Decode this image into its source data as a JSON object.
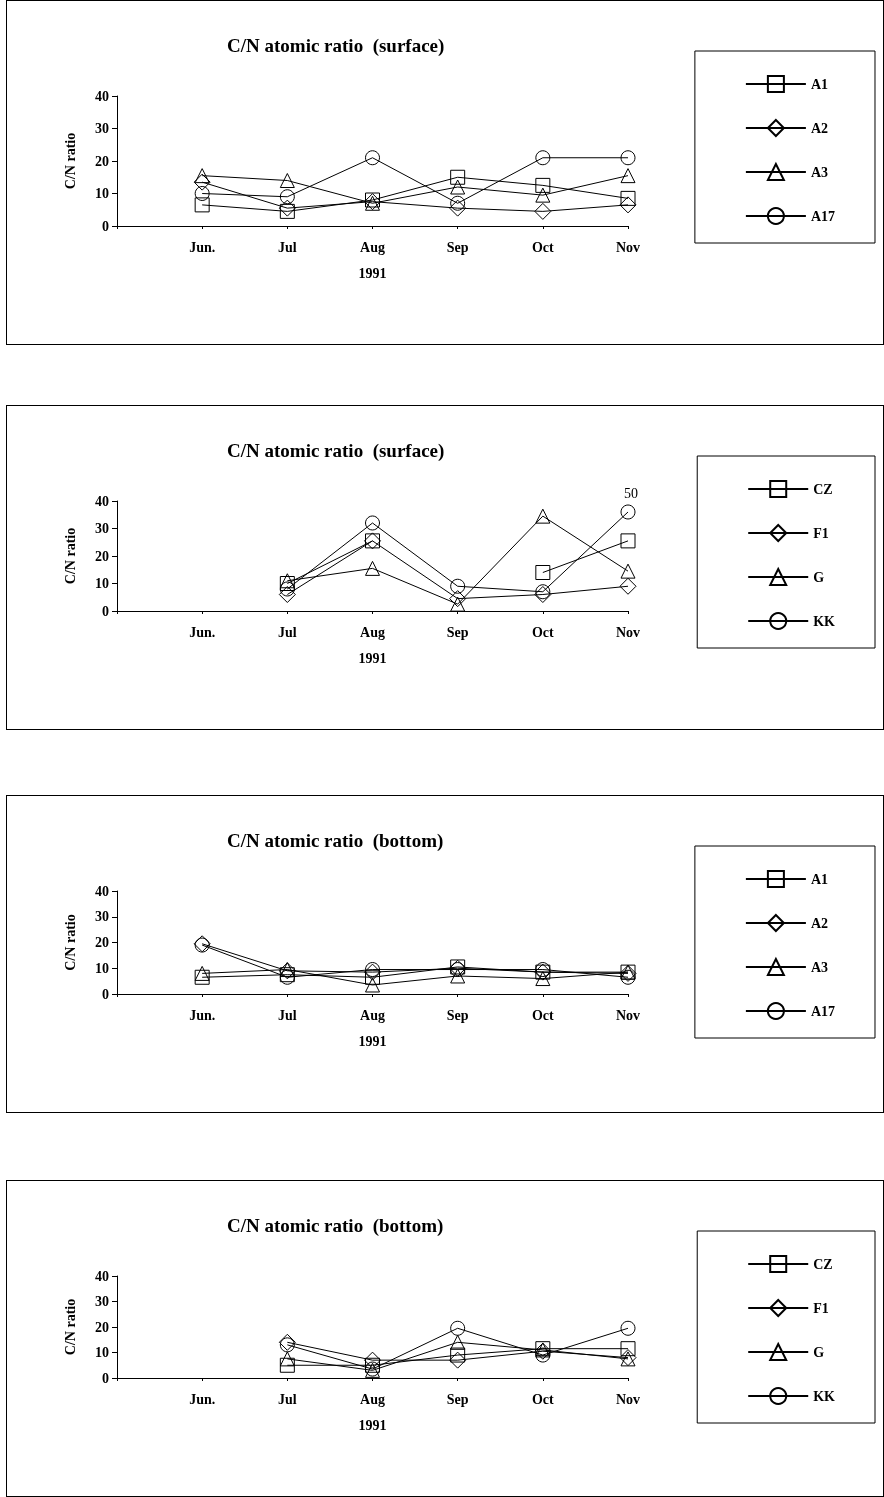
{
  "chart_data": [
    {
      "type": "line",
      "title": "C/N atomic ratio  (surface)",
      "xlabel": "1991",
      "ylabel": "C/N ratio",
      "categories": [
        null,
        "Jun.",
        "Jul",
        "Aug",
        "Sep",
        "Oct",
        "Nov"
      ],
      "ylim": [
        0,
        40
      ],
      "yticks": [
        0,
        10,
        20,
        30,
        40
      ],
      "grid": false,
      "legend": "right",
      "series": [
        {
          "name": "A1",
          "color": "#000000",
          "marker": "square",
          "values": [
            null,
            6.5,
            4.5,
            8,
            15,
            12.5,
            8.5
          ]
        },
        {
          "name": "A2",
          "color": "#000000",
          "marker": "diamond",
          "values": [
            null,
            13.5,
            5.5,
            7.5,
            5.5,
            4.5,
            6.5
          ]
        },
        {
          "name": "A3",
          "color": "#000000",
          "marker": "triangle",
          "values": [
            null,
            15.5,
            14,
            7,
            12,
            9.5,
            15.5
          ]
        },
        {
          "name": "A17",
          "color": "#000000",
          "marker": "circle",
          "values": [
            null,
            10,
            9,
            21,
            7,
            21,
            21
          ]
        }
      ]
    },
    {
      "type": "line",
      "title": "C/N atomic ratio  (surface)",
      "xlabel": "1991",
      "ylabel": "C/N ratio",
      "categories": [
        null,
        "Jun.",
        "Jul",
        "Aug",
        "Sep",
        "Oct",
        "Nov"
      ],
      "ylim": [
        0,
        40
      ],
      "yticks": [
        0,
        10,
        20,
        30,
        40
      ],
      "grid": false,
      "legend": "right",
      "annotations": [
        "50"
      ],
      "series": [
        {
          "name": "CZ",
          "color": "#000000",
          "marker": "square",
          "values": [
            null,
            null,
            10,
            25.5,
            null,
            14,
            25.5
          ]
        },
        {
          "name": "F1",
          "color": "#000000",
          "marker": "diamond",
          "values": [
            null,
            null,
            6,
            25.5,
            4.5,
            6,
            9
          ]
        },
        {
          "name": "G",
          "color": "#000000",
          "marker": "triangle",
          "values": [
            null,
            null,
            11,
            15.5,
            2.5,
            34.5,
            14.5
          ]
        },
        {
          "name": "KK",
          "color": "#000000",
          "marker": "circle",
          "values": [
            null,
            null,
            8,
            32,
            9,
            7,
            36
          ]
        }
      ]
    },
    {
      "type": "line",
      "title": "C/N atomic ratio  (bottom)",
      "xlabel": "1991",
      "ylabel": "C/N ratio",
      "categories": [
        null,
        "Jun.",
        "Jul",
        "Aug",
        "Sep",
        "Oct",
        "Nov"
      ],
      "ylim": [
        0,
        40
      ],
      "yticks": [
        0,
        10,
        20,
        30,
        40
      ],
      "grid": false,
      "legend": "right",
      "series": [
        {
          "name": "A1",
          "color": "#000000",
          "marker": "square",
          "values": [
            null,
            6.5,
            7.5,
            6.5,
            10.5,
            8.5,
            8.5
          ]
        },
        {
          "name": "A2",
          "color": "#000000",
          "marker": "diamond",
          "values": [
            null,
            19.5,
            9,
            8.5,
            10,
            8.5,
            8
          ]
        },
        {
          "name": "A3",
          "color": "#000000",
          "marker": "triangle",
          "values": [
            null,
            8,
            9.5,
            3.5,
            7,
            6,
            8.5
          ]
        },
        {
          "name": "A17",
          "color": "#000000",
          "marker": "circle",
          "values": [
            null,
            19,
            6.5,
            9.5,
            9.5,
            9.5,
            6.5
          ]
        }
      ]
    },
    {
      "type": "line",
      "title": "C/N atomic ratio  (bottom)",
      "xlabel": "1991",
      "ylabel": "C/N ratio",
      "categories": [
        null,
        "Jun.",
        "Jul",
        "Aug",
        "Sep",
        "Oct",
        "Nov"
      ],
      "ylim": [
        0,
        40
      ],
      "yticks": [
        0,
        10,
        20,
        30,
        40
      ],
      "grid": false,
      "legend": "right",
      "series": [
        {
          "name": "CZ",
          "color": "#000000",
          "marker": "square",
          "values": [
            null,
            null,
            5,
            5,
            9,
            11.5,
            11.5
          ]
        },
        {
          "name": "F1",
          "color": "#000000",
          "marker": "diamond",
          "values": [
            null,
            null,
            14,
            7,
            7,
            10.5,
            8
          ]
        },
        {
          "name": "G",
          "color": "#000000",
          "marker": "triangle",
          "values": [
            null,
            null,
            7.5,
            3,
            14,
            11,
            7.5
          ]
        },
        {
          "name": "KK",
          "color": "#000000",
          "marker": "circle",
          "values": [
            null,
            null,
            13,
            3.5,
            19.5,
            9,
            19.5
          ]
        }
      ]
    }
  ]
}
